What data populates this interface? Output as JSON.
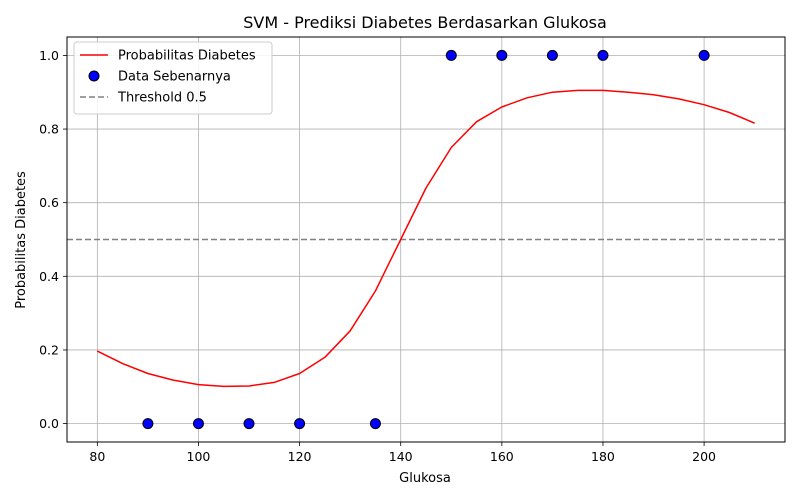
{
  "chart_data": {
    "type": "line",
    "title": "SVM - Prediksi Diabetes Berdasarkan Glukosa",
    "xlabel": "Glukosa",
    "ylabel": "Probabilitas Diabetes",
    "xlim": [
      74,
      216
    ],
    "ylim": [
      -0.05,
      1.05
    ],
    "xticks": [
      "80",
      "100",
      "120",
      "140",
      "160",
      "180",
      "200"
    ],
    "yticks": [
      "0.0",
      "0.2",
      "0.4",
      "0.6",
      "0.8",
      "1.0"
    ],
    "grid": true,
    "legend_position": "top-left",
    "series": [
      {
        "name": "Probabilitas Diabetes",
        "kind": "line",
        "color": "#ff0000",
        "x": [
          80,
          85,
          90,
          95,
          100,
          105,
          110,
          115,
          120,
          125,
          130,
          135,
          140,
          145,
          150,
          155,
          160,
          165,
          170,
          175,
          180,
          185,
          190,
          195,
          200,
          205,
          210
        ],
        "y": [
          0.197,
          0.163,
          0.136,
          0.118,
          0.106,
          0.101,
          0.102,
          0.112,
          0.136,
          0.18,
          0.252,
          0.36,
          0.5,
          0.64,
          0.75,
          0.82,
          0.86,
          0.885,
          0.9,
          0.905,
          0.905,
          0.9,
          0.893,
          0.882,
          0.866,
          0.845,
          0.816
        ]
      },
      {
        "name": "Data Sebenarnya",
        "kind": "scatter",
        "color": "#0000ff",
        "x": [
          90,
          100,
          110,
          120,
          135,
          150,
          160,
          170,
          180,
          200
        ],
        "y": [
          0,
          0,
          0,
          0,
          0,
          1,
          1,
          1,
          1,
          1
        ]
      },
      {
        "name": "Threshold 0.5",
        "kind": "hline",
        "color": "#808080",
        "y": 0.5
      }
    ]
  }
}
